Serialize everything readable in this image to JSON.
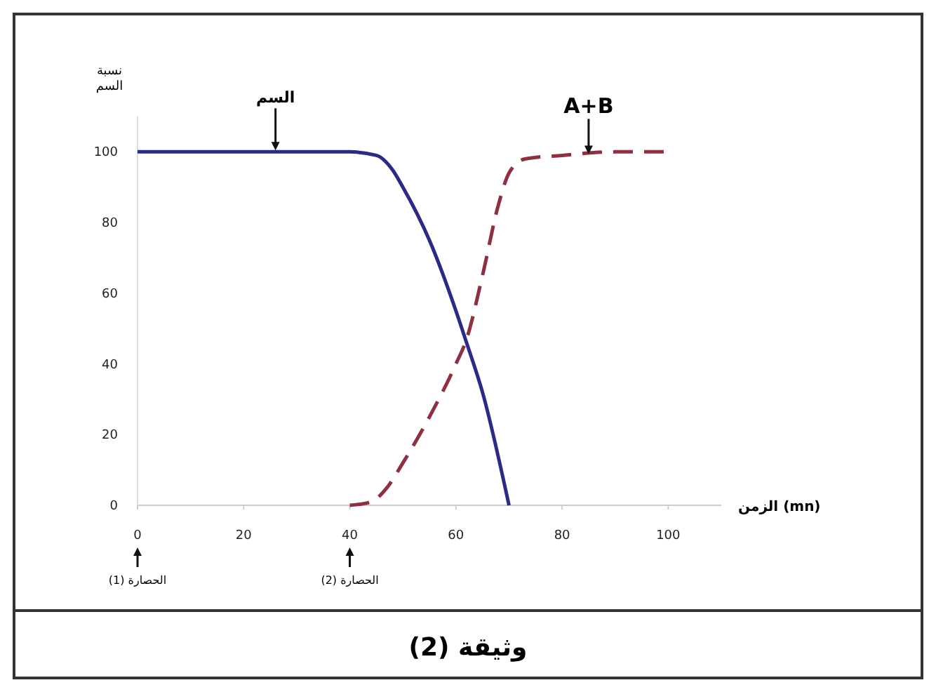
{
  "chart_data": {
    "type": "line",
    "title": "وثيقة (2)",
    "ylabel": "نسبة السم",
    "xlabel": "الزمن (mn)",
    "x": [
      0,
      40,
      45,
      48,
      50,
      55,
      60,
      62,
      65,
      70
    ],
    "series": [
      {
        "name": "السم",
        "color": "#2b2b86",
        "line_style": "solid",
        "values": [
          100,
          100,
          99,
          95,
          90,
          75,
          55,
          46,
          32,
          0
        ]
      },
      {
        "name": "A+B",
        "color": "#8e3040",
        "line_style": "dashed",
        "x": [
          40,
          44,
          47,
          50,
          55,
          60,
          62,
          65,
          68,
          70,
          73,
          80,
          90,
          100
        ],
        "values": [
          0,
          1,
          5,
          12,
          25,
          40,
          47,
          65,
          85,
          94,
          98,
          99,
          100,
          100
        ]
      }
    ],
    "xlim": [
      0,
      110
    ],
    "ylim": [
      0,
      110
    ],
    "xticks": [
      0,
      20,
      40,
      60,
      80,
      100
    ],
    "yticks": [
      0,
      20,
      40,
      60,
      80,
      100
    ],
    "annotations": [
      {
        "text": "الحصارة (1)",
        "x": 0
      },
      {
        "text": "الحصارة (2)",
        "x": 40
      }
    ],
    "grid": false,
    "marker": "none"
  }
}
